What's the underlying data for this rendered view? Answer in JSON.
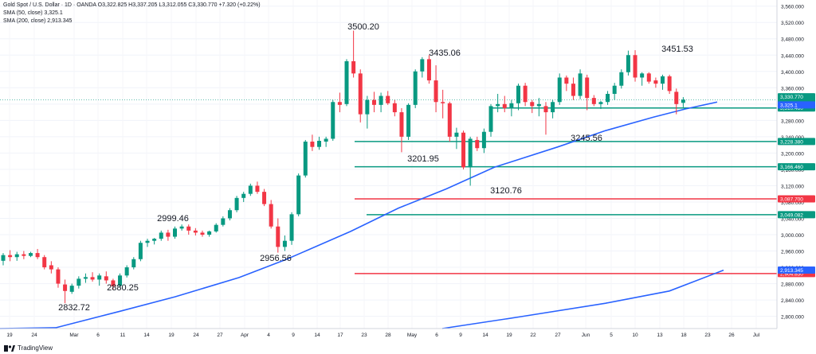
{
  "header": {
    "instrument": "Gold Spot / U.S. Dollar · 1D · OANDA",
    "ohlc": "O3,322.825 H3,337.205 L3,312.055 C3,330.770 +7.320 (+0.22%)",
    "sma50": "SMA (50, close) 3,325.1",
    "sma200": "SMA (200, close) 2,913.345"
  },
  "branding": "TradingView",
  "colors": {
    "up": "#089981",
    "down": "#f23645",
    "sma": "#2962ff",
    "support": "#089981",
    "resistance": "#f23645",
    "axis_text": "#131722"
  },
  "chart_data": {
    "type": "candlestick",
    "y_axis_ticks": [
      "3,560.000",
      "3,520.000",
      "3,480.000",
      "3,440.000",
      "3,400.000",
      "3,360.000",
      "3,320.000",
      "3,280.000",
      "3,240.000",
      "3,200.000",
      "3,160.000",
      "3,120.000",
      "3,080.000",
      "3,040.000",
      "3,000.000",
      "2,960.000",
      "2,920.000",
      "2,880.000",
      "2,840.000",
      "2,800.000"
    ],
    "x_axis_ticks": [
      "19",
      "24",
      "Mar",
      "6",
      "11",
      "14",
      "19",
      "24",
      "27",
      "Apr",
      "4",
      "9",
      "14",
      "17",
      "23",
      "28",
      "May",
      "6",
      "9",
      "14",
      "19",
      "22",
      "27",
      "Jun",
      "5",
      "10",
      "13",
      "18",
      "23",
      "26",
      "Jul"
    ],
    "ylim": [
      2770,
      3575
    ],
    "price_labels": {
      "last": "3,330.770",
      "countdown": "01:49:41",
      "sma50": "3,325.1",
      "level_3310": "3,310.480"
    },
    "levels": [
      {
        "value": 3310.48,
        "label": "3,310.480",
        "kind": "support"
      },
      {
        "value": 3228.38,
        "label": "3,228.380",
        "kind": "support"
      },
      {
        "value": 3166.46,
        "label": "3,166.460",
        "kind": "support"
      },
      {
        "value": 3087.7,
        "label": "3,087.700",
        "kind": "resistance"
      },
      {
        "value": 3049.082,
        "label": "3,049.082",
        "kind": "support"
      },
      {
        "value": 2904.85,
        "label": "2,904.850",
        "kind": "resistance"
      }
    ],
    "sma200_label": "2,913.345",
    "annotations": [
      "3500.20",
      "3435.06",
      "3451.53",
      "3201.95",
      "3245.56",
      "3120.76",
      "2999.46",
      "2956.56",
      "2880.25",
      "2832.72"
    ],
    "candles": [
      [
        2936,
        2955,
        2925,
        2950
      ],
      [
        2950,
        2962,
        2935,
        2945
      ],
      [
        2945,
        2958,
        2936,
        2952
      ],
      [
        2952,
        2960,
        2940,
        2948
      ],
      [
        2948,
        2958,
        2945,
        2955
      ],
      [
        2955,
        2965,
        2940,
        2945
      ],
      [
        2945,
        2950,
        2915,
        2920
      ],
      [
        2925,
        2935,
        2905,
        2915
      ],
      [
        2915,
        2920,
        2870,
        2880
      ],
      [
        2878,
        2890,
        2832,
        2862
      ],
      [
        2860,
        2880,
        2855,
        2875
      ],
      [
        2875,
        2898,
        2868,
        2892
      ],
      [
        2892,
        2905,
        2882,
        2896
      ],
      [
        2896,
        2908,
        2885,
        2890
      ],
      [
        2890,
        2905,
        2875,
        2900
      ],
      [
        2898,
        2910,
        2880,
        2888
      ],
      [
        2888,
        2892,
        2865,
        2874
      ],
      [
        2875,
        2905,
        2870,
        2900
      ],
      [
        2900,
        2925,
        2895,
        2920
      ],
      [
        2920,
        2945,
        2915,
        2940
      ],
      [
        2940,
        2985,
        2935,
        2980
      ],
      [
        2980,
        2990,
        2970,
        2985
      ],
      [
        2985,
        2992,
        2976,
        2990
      ],
      [
        2990,
        3010,
        2985,
        3005
      ],
      [
        3005,
        3012,
        2985,
        2995
      ],
      [
        2995,
        3020,
        2990,
        3015
      ],
      [
        3015,
        3025,
        3010,
        3020
      ],
      [
        3020,
        3025,
        3000,
        3010
      ],
      [
        3010,
        3016,
        2998,
        3005
      ],
      [
        3005,
        3010,
        2995,
        3000
      ],
      [
        3000,
        3010,
        2995,
        3008
      ],
      [
        3008,
        3028,
        3005,
        3024
      ],
      [
        3024,
        3045,
        3020,
        3040
      ],
      [
        3040,
        3065,
        3035,
        3060
      ],
      [
        3060,
        3095,
        3055,
        3090
      ],
      [
        3090,
        3105,
        3080,
        3100
      ],
      [
        3100,
        3125,
        3095,
        3120
      ],
      [
        3120,
        3130,
        3100,
        3105
      ],
      [
        3105,
        3112,
        3070,
        3075
      ],
      [
        3075,
        3085,
        3015,
        3020
      ],
      [
        3020,
        3040,
        2956,
        2970
      ],
      [
        2970,
        2998,
        2960,
        2985
      ],
      [
        2985,
        3055,
        2975,
        3050
      ],
      [
        3050,
        3150,
        3045,
        3145
      ],
      [
        3145,
        3232,
        3140,
        3228
      ],
      [
        3228,
        3245,
        3205,
        3215
      ],
      [
        3215,
        3240,
        3208,
        3230
      ],
      [
        3228,
        3240,
        3215,
        3235
      ],
      [
        3235,
        3330,
        3230,
        3325
      ],
      [
        3325,
        3348,
        3300,
        3318
      ],
      [
        3320,
        3430,
        3315,
        3425
      ],
      [
        3425,
        3500,
        3385,
        3395
      ],
      [
        3395,
        3405,
        3275,
        3295
      ],
      [
        3295,
        3340,
        3260,
        3330
      ],
      [
        3330,
        3350,
        3300,
        3318
      ],
      [
        3318,
        3348,
        3300,
        3340
      ],
      [
        3340,
        3352,
        3318,
        3322
      ],
      [
        3322,
        3330,
        3290,
        3300
      ],
      [
        3300,
        3310,
        3202,
        3240
      ],
      [
        3240,
        3322,
        3232,
        3318
      ],
      [
        3318,
        3405,
        3310,
        3400
      ],
      [
        3400,
        3435,
        3385,
        3430
      ],
      [
        3430,
        3440,
        3370,
        3378
      ],
      [
        3378,
        3415,
        3300,
        3325
      ],
      [
        3325,
        3355,
        3285,
        3322
      ],
      [
        3322,
        3326,
        3228,
        3240
      ],
      [
        3240,
        3262,
        3210,
        3250
      ],
      [
        3250,
        3255,
        3160,
        3165
      ],
      [
        3165,
        3240,
        3120,
        3235
      ],
      [
        3232,
        3240,
        3205,
        3212
      ],
      [
        3212,
        3260,
        3200,
        3252
      ],
      [
        3252,
        3320,
        3240,
        3315
      ],
      [
        3315,
        3345,
        3300,
        3320
      ],
      [
        3320,
        3340,
        3300,
        3310
      ],
      [
        3310,
        3330,
        3290,
        3322
      ],
      [
        3322,
        3370,
        3305,
        3365
      ],
      [
        3365,
        3372,
        3315,
        3325
      ],
      [
        3325,
        3330,
        3298,
        3315
      ],
      [
        3315,
        3335,
        3290,
        3320
      ],
      [
        3315,
        3325,
        3245,
        3300
      ],
      [
        3300,
        3330,
        3285,
        3325
      ],
      [
        3325,
        3395,
        3318,
        3385
      ],
      [
        3385,
        3390,
        3352,
        3370
      ],
      [
        3370,
        3385,
        3330,
        3340
      ],
      [
        3340,
        3405,
        3332,
        3395
      ],
      [
        3385,
        3392,
        3305,
        3335
      ],
      [
        3335,
        3342,
        3315,
        3320
      ],
      [
        3320,
        3328,
        3308,
        3325
      ],
      [
        3325,
        3352,
        3318,
        3345
      ],
      [
        3345,
        3372,
        3330,
        3365
      ],
      [
        3365,
        3405,
        3358,
        3398
      ],
      [
        3398,
        3451,
        3390,
        3440
      ],
      [
        3440,
        3452,
        3375,
        3385
      ],
      [
        3385,
        3398,
        3365,
        3395
      ],
      [
        3395,
        3398,
        3370,
        3375
      ],
      [
        3378,
        3385,
        3360,
        3370
      ],
      [
        3370,
        3392,
        3355,
        3388
      ],
      [
        3388,
        3392,
        3345,
        3352
      ],
      [
        3350,
        3358,
        3295,
        3320
      ],
      [
        3323,
        3337,
        3312,
        3330.77
      ]
    ],
    "sma50": [
      [
        0,
        2770
      ],
      [
        70,
        2772
      ],
      [
        150,
        2812
      ],
      [
        220,
        2848
      ],
      [
        300,
        2895
      ],
      [
        360,
        2940
      ],
      [
        440,
        3008
      ],
      [
        500,
        3065
      ],
      [
        560,
        3112
      ],
      [
        620,
        3165
      ],
      [
        700,
        3215
      ],
      [
        760,
        3255
      ],
      [
        820,
        3288
      ],
      [
        860,
        3308
      ],
      [
        900,
        3325
      ]
    ],
    "sma200": [
      [
        555,
        2770
      ],
      [
        650,
        2798
      ],
      [
        760,
        2832
      ],
      [
        840,
        2862
      ],
      [
        908,
        2913
      ]
    ]
  }
}
